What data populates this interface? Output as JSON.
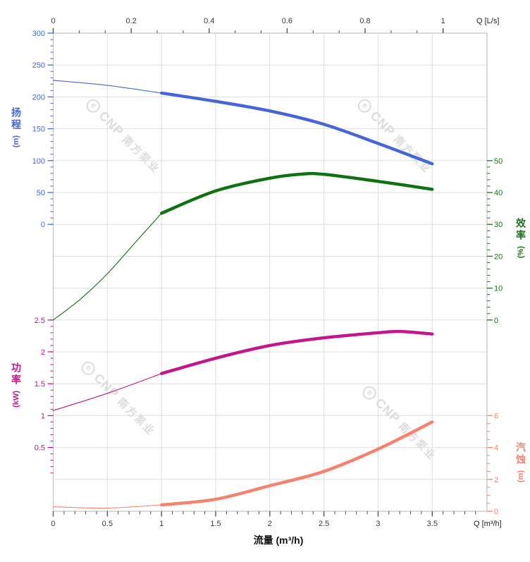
{
  "watermark": {
    "logo_letter": "e",
    "brand": "CNP",
    "company": "南方泵业",
    "color": "#dcdcdc"
  },
  "chart_data": {
    "type": "line",
    "title": "",
    "grid": {
      "horizontal_rows": 15,
      "vertical_step_m3h": 0.5,
      "grid_color": "#dedede",
      "spine_color": "#c2c2c2"
    },
    "x_axis_bottom": {
      "title": "流量 (m³/h)",
      "unit_label": "Q [m³/h]",
      "range": [
        0,
        3.99
      ],
      "majors": [
        0,
        0.5,
        1,
        1.5,
        2,
        2.5,
        3,
        3.5
      ],
      "minor_step": 0.1,
      "tick_color": "#4a4a4a",
      "label_color": "#3a3a3a"
    },
    "x_axis_top": {
      "unit_label": "Q [L/s]",
      "range": [
        0,
        1.11
      ],
      "majors": [
        0,
        0.2,
        0.4,
        0.6,
        0.8,
        1
      ],
      "minors_per_interval": 2,
      "conversion_to_bottom": 3.6,
      "tick_color": "#4a4a4a",
      "label_color": "#3a3a3a"
    },
    "y_axes": [
      {
        "id": "head",
        "title": "扬程",
        "unit": "(m)",
        "side": "left",
        "color": "#4566D9",
        "range": [
          0,
          300
        ],
        "majors": [
          300,
          250,
          200,
          150,
          100,
          50,
          0
        ],
        "minor_step": 10
      },
      {
        "id": "efficiency",
        "title": "效率",
        "unit": "(%)",
        "side": "right",
        "color": "#1B711B",
        "range": [
          0,
          50
        ],
        "majors": [
          50,
          40,
          30,
          20,
          10,
          0
        ],
        "minor_step": 2
      },
      {
        "id": "power",
        "title": "功率",
        "unit": "(kW)",
        "side": "left",
        "color": "#C2168C",
        "range": [
          0,
          2.5
        ],
        "majors": [
          2.5,
          2,
          1.5,
          1,
          0.5
        ],
        "minor_step": 0.1
      },
      {
        "id": "npsh",
        "title": "汽蚀",
        "unit": "(m)",
        "side": "right",
        "color": "#F5826E",
        "range": [
          0,
          6
        ],
        "majors": [
          6,
          4,
          2,
          0
        ],
        "minor_step": 0.5
      }
    ],
    "series": [
      {
        "id": "head",
        "axis": "head",
        "color": "#4566D9",
        "bold_from": 1,
        "x": [
          0,
          0.5,
          1,
          1.5,
          2,
          2.5,
          3,
          3.5
        ],
        "values": [
          226,
          218,
          206,
          193,
          178,
          157,
          127,
          95
        ]
      },
      {
        "id": "efficiency",
        "axis": "efficiency",
        "color": "#0E7212",
        "bold_from": 1,
        "x": [
          0,
          0.25,
          0.5,
          0.75,
          1,
          1.5,
          2,
          2.3,
          2.5,
          3,
          3.5
        ],
        "values": [
          0,
          6.5,
          14.5,
          24,
          33.5,
          40.5,
          44.5,
          45.8,
          45.7,
          43.5,
          41
        ]
      },
      {
        "id": "power",
        "axis": "power",
        "color": "#C2168C",
        "bold_from": 1,
        "x": [
          0,
          0.5,
          1,
          1.5,
          2,
          2.5,
          3,
          3.2,
          3.5
        ],
        "values": [
          1.08,
          1.35,
          1.66,
          1.9,
          2.1,
          2.22,
          2.3,
          2.32,
          2.28
        ]
      },
      {
        "id": "npsh",
        "axis": "npsh",
        "color": "#F5826E",
        "bold_from": 1,
        "x": [
          0,
          0.5,
          1,
          1.5,
          2,
          2.5,
          3,
          3.5
        ],
        "values": [
          0.28,
          0.2,
          0.4,
          0.75,
          1.6,
          2.5,
          3.9,
          5.6
        ]
      }
    ]
  }
}
